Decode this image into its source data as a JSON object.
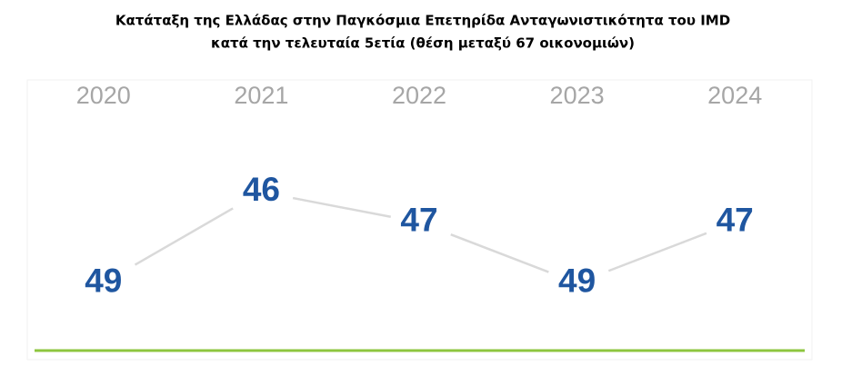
{
  "chart_data": {
    "type": "line",
    "title": [
      "Κατάταξη της Ελλάδας στην Παγκόσμια Επετηρίδα Ανταγωνιστικότητα του IMD",
      "κατά την τελευταία 5ετία (θέση μεταξύ 67 οικονομιών)"
    ],
    "categories": [
      "2020",
      "2021",
      "2022",
      "2023",
      "2024"
    ],
    "values": [
      49,
      46,
      47,
      49,
      47
    ],
    "ylim": [
      50,
      45
    ],
    "color": "#1f56a0",
    "line_color": "#d9d9d9"
  }
}
